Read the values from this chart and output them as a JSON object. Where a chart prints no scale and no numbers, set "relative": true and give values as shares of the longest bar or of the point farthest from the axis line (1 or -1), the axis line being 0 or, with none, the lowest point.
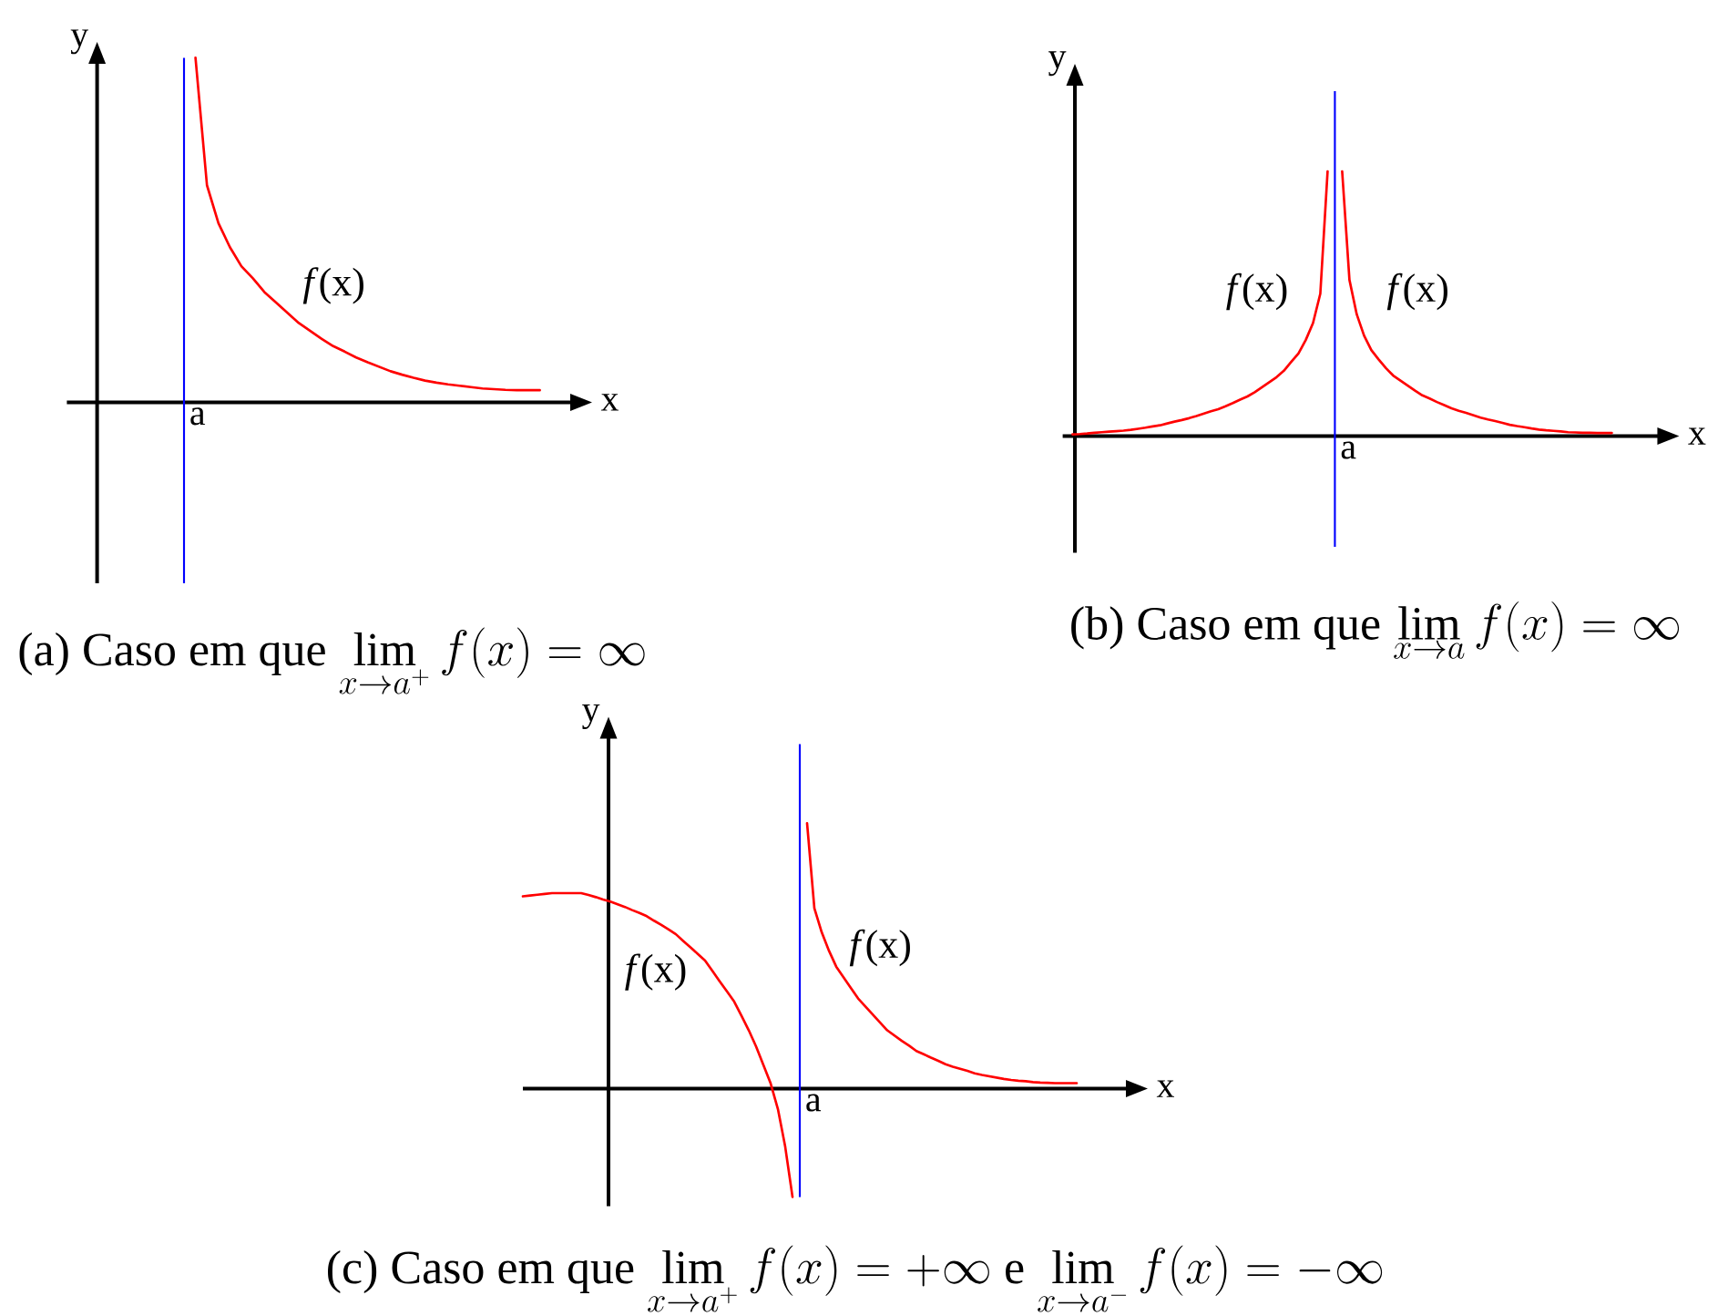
{
  "chart_data": [
    {
      "type": "line",
      "relative": true,
      "xlabel": "x",
      "ylabel": "y",
      "categories": [
        null,
        null,
        null,
        null,
        null,
        null,
        null,
        null,
        null,
        null,
        null,
        null,
        null,
        null,
        null,
        null,
        null,
        null,
        null,
        null,
        null,
        null,
        null,
        null,
        null,
        null,
        null,
        null,
        null,
        null,
        null,
        null
      ],
      "series": [
        {
          "name": "*f*(x)",
          "color": "#ff0000",
          "values": [
            null,
            1.0,
            0.63,
            0.52,
            0.45,
            0.395,
            0.36,
            0.32,
            0.29,
            0.26,
            0.23,
            0.207,
            0.184,
            0.163,
            0.147,
            0.13,
            0.116,
            0.103,
            0.09,
            0.08,
            0.071,
            0.063,
            0.057,
            0.052,
            0.048,
            0.044,
            0.04,
            0.038,
            0.036,
            0.035,
            0.035,
            0.035
          ]
        }
      ],
      "annotations": [
        "a",
        "(a) Caso em que",
        "\\lim_{x \\to a^{+}} f(x) = \\infty"
      ]
    },
    {
      "type": "line",
      "relative": true,
      "xlabel": "x",
      "ylabel": "y",
      "categories": [
        null,
        null,
        null,
        null,
        null,
        null,
        null,
        null,
        null,
        null,
        null,
        null,
        null,
        null,
        null,
        null,
        null,
        null,
        null,
        null,
        null,
        null,
        null,
        null,
        null,
        null,
        null,
        null,
        null,
        null,
        null,
        null,
        null,
        null,
        null,
        null,
        null,
        null,
        null,
        null,
        null,
        null,
        null,
        null,
        null,
        null,
        null,
        null,
        null,
        null,
        null,
        null,
        null,
        null,
        null,
        null,
        null,
        null,
        null,
        null,
        null,
        null,
        null,
        null,
        null,
        null,
        null,
        null,
        null,
        null,
        null,
        null,
        null,
        null,
        null
      ],
      "series": [
        {
          "name": "*f*(x)",
          "color": "#ff0000",
          "values": [
            0.007,
            0.008,
            0.01,
            0.013,
            0.015,
            0.017,
            0.019,
            0.021,
            0.024,
            0.028,
            0.032,
            0.037,
            0.041,
            0.048,
            0.055,
            0.061,
            0.068,
            0.076,
            0.085,
            0.094,
            0.102,
            0.113,
            0.125,
            0.138,
            0.15,
            0.166,
            0.185,
            0.204,
            0.223,
            0.247,
            0.28,
            0.312,
            0.363,
            0.427,
            0.538,
            1.0,
            null,
            null,
            null,
            null,
            null,
            null,
            null,
            null,
            null,
            null,
            null,
            null,
            null,
            null,
            null,
            null,
            null,
            null,
            null,
            null,
            null,
            null,
            null,
            null,
            null,
            null,
            null,
            null,
            null,
            null,
            null,
            null,
            null,
            null,
            null,
            null,
            null,
            null,
            null
          ]
        },
        {
          "name": "*f*(x)",
          "color": "#ff0000",
          "values": [
            null,
            null,
            null,
            null,
            null,
            null,
            null,
            null,
            null,
            null,
            null,
            null,
            null,
            null,
            null,
            null,
            null,
            null,
            null,
            null,
            null,
            null,
            null,
            null,
            null,
            null,
            null,
            null,
            null,
            null,
            null,
            null,
            null,
            null,
            null,
            null,
            null,
            1.0,
            0.59,
            0.46,
            0.38,
            0.325,
            0.29,
            0.257,
            0.229,
            0.21,
            0.191,
            0.172,
            0.154,
            0.142,
            0.129,
            0.117,
            0.105,
            0.096,
            0.088,
            0.079,
            0.07,
            0.063,
            0.057,
            0.05,
            0.043,
            0.038,
            0.034,
            0.029,
            0.025,
            0.022,
            0.02,
            0.018,
            0.015,
            0.014,
            0.013,
            0.013,
            0.012,
            0.012,
            0.012
          ]
        }
      ],
      "annotations": [
        "a",
        "(b) Caso em que",
        "\\lim_{x \\to a} f(x) = \\infty"
      ]
    },
    {
      "type": "line",
      "relative": true,
      "xlabel": "x",
      "ylabel": "y",
      "categories": [
        null,
        null,
        null,
        null,
        null,
        null,
        null,
        null,
        null,
        null,
        null,
        null,
        null,
        null,
        null,
        null,
        null,
        null,
        null,
        null,
        null,
        null,
        null,
        null,
        null,
        null,
        null,
        null,
        null,
        null,
        null,
        null,
        null,
        null,
        null,
        null,
        null,
        null,
        null,
        null,
        null,
        null,
        null,
        null,
        null,
        null,
        null,
        null,
        null,
        null,
        null,
        null,
        null,
        null,
        null,
        null,
        null,
        null,
        null,
        null,
        null,
        null,
        null,
        null,
        null,
        null,
        null,
        null,
        null,
        null,
        null,
        null,
        null,
        null,
        null,
        null,
        null
      ],
      "series": [
        {
          "name": "*f*(x)",
          "color": "#ff0000",
          "values": [
            0.725,
            0.728,
            0.731,
            0.734,
            0.737,
            0.737,
            0.737,
            0.737,
            0.737,
            0.73,
            0.722,
            0.713,
            0.705,
            0.695,
            0.685,
            0.673,
            0.662,
            0.65,
            0.633,
            0.617,
            0.6,
            0.582,
            0.557,
            0.533,
            0.508,
            0.483,
            0.444,
            0.405,
            0.367,
            0.328,
            0.275,
            0.22,
            0.159,
            0.09,
            0.02,
            -0.077,
            -0.219,
            -0.408,
            null,
            null,
            null,
            null,
            null,
            null,
            null,
            null,
            null,
            null,
            null,
            null,
            null,
            null,
            null,
            null,
            null,
            null,
            null,
            null,
            null,
            null,
            null,
            null,
            null,
            null,
            null,
            null,
            null,
            null,
            null,
            null,
            null,
            null,
            null,
            null,
            null,
            null,
            null
          ]
        },
        {
          "name": "*f*(x)",
          "color": "#ff0000",
          "values": [
            null,
            null,
            null,
            null,
            null,
            null,
            null,
            null,
            null,
            null,
            null,
            null,
            null,
            null,
            null,
            null,
            null,
            null,
            null,
            null,
            null,
            null,
            null,
            null,
            null,
            null,
            null,
            null,
            null,
            null,
            null,
            null,
            null,
            null,
            null,
            null,
            null,
            null,
            null,
            1.0,
            0.68,
            0.59,
            0.52,
            0.46,
            0.42,
            0.38,
            0.34,
            0.31,
            0.28,
            0.25,
            0.22,
            0.2,
            0.18,
            0.162,
            0.142,
            0.13,
            0.117,
            0.105,
            0.092,
            0.083,
            0.075,
            0.067,
            0.058,
            0.052,
            0.047,
            0.042,
            0.037,
            0.033,
            0.03,
            0.028,
            0.025,
            0.023,
            0.022,
            0.021,
            0.021,
            0.021,
            0.021
          ]
        }
      ],
      "annotations": [
        "a",
        "(c) Caso em que",
        "\\lim_{x \\to a^{+}} f(x) = +\\infty",
        "e",
        "\\lim_{x \\to a^{-}} f(x) = -\\infty"
      ]
    }
  ]
}
